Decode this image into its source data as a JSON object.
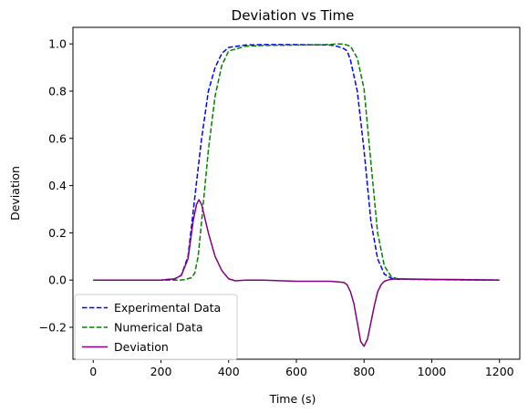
{
  "chart_data": {
    "type": "line",
    "title": "Deviation vs Time",
    "xlabel": "Time (s)",
    "ylabel": "Deviation",
    "xlim": [
      -60,
      1260
    ],
    "ylim": [
      -0.335,
      1.07
    ],
    "xticks": [
      0,
      200,
      400,
      600,
      800,
      1000,
      1200
    ],
    "yticks": [
      -0.2,
      0.0,
      0.2,
      0.4,
      0.6,
      0.8,
      1.0
    ],
    "xtick_labels": [
      "0",
      "200",
      "400",
      "600",
      "800",
      "1000",
      "1200"
    ],
    "ytick_labels": [
      "−0.2",
      "0.0",
      "0.2",
      "0.4",
      "0.6",
      "0.8",
      "1.0"
    ],
    "grid": false,
    "legend": "lower-left",
    "series": [
      {
        "name": "Experimental Data",
        "style": "dashed",
        "color": "#0000ff",
        "x": [
          0,
          200,
          240,
          260,
          280,
          300,
          320,
          340,
          360,
          380,
          400,
          450,
          500,
          600,
          700,
          720,
          740,
          750,
          760,
          780,
          800,
          820,
          840,
          860,
          880,
          900,
          1000,
          1100,
          1200
        ],
        "y": [
          0,
          0,
          0.005,
          0.02,
          0.1,
          0.35,
          0.6,
          0.8,
          0.9,
          0.96,
          0.985,
          0.995,
          0.997,
          0.997,
          0.995,
          0.99,
          0.98,
          0.97,
          0.93,
          0.8,
          0.55,
          0.25,
          0.09,
          0.025,
          0.008,
          0.004,
          0.002,
          0.001,
          0
        ]
      },
      {
        "name": "Numerical Data",
        "style": "dashed",
        "color": "#008000",
        "x": [
          0,
          200,
          250,
          270,
          290,
          300,
          310,
          320,
          340,
          360,
          380,
          400,
          450,
          500,
          600,
          700,
          720,
          740,
          760,
          780,
          800,
          820,
          840,
          860,
          880,
          900,
          1000,
          1100,
          1200
        ],
        "y": [
          0,
          0,
          0,
          0.002,
          0.01,
          0.03,
          0.1,
          0.25,
          0.55,
          0.78,
          0.91,
          0.97,
          0.99,
          0.993,
          0.995,
          0.997,
          1.0,
          0.999,
          0.99,
          0.94,
          0.81,
          0.5,
          0.2,
          0.06,
          0.015,
          0.005,
          0.002,
          0.001,
          0
        ]
      },
      {
        "name": "Deviation",
        "style": "solid",
        "color": "#800080",
        "x": [
          0,
          200,
          240,
          260,
          280,
          295,
          305,
          312,
          320,
          330,
          340,
          360,
          380,
          400,
          420,
          450,
          500,
          600,
          700,
          740,
          750,
          760,
          770,
          780,
          790,
          800,
          810,
          820,
          830,
          840,
          850,
          860,
          870,
          880,
          900,
          1000,
          1100,
          1200
        ],
        "y": [
          0,
          0,
          0.005,
          0.02,
          0.09,
          0.25,
          0.32,
          0.34,
          0.32,
          0.26,
          0.2,
          0.1,
          0.04,
          0.005,
          -0.003,
          0.0,
          0.0,
          -0.005,
          -0.005,
          -0.01,
          -0.02,
          -0.05,
          -0.1,
          -0.18,
          -0.26,
          -0.28,
          -0.25,
          -0.18,
          -0.11,
          -0.05,
          -0.02,
          -0.005,
          0.0,
          0.003,
          0.005,
          0.003,
          0.002,
          0.0
        ]
      }
    ]
  }
}
